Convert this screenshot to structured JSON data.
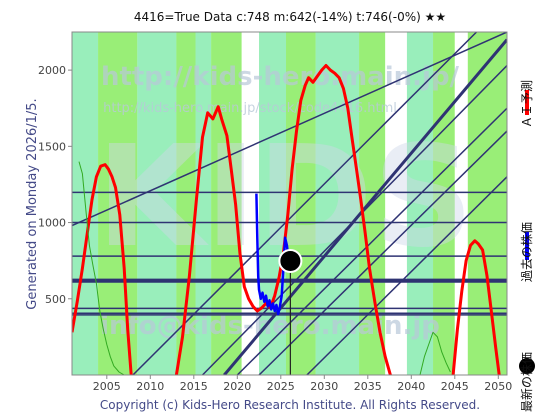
{
  "header": {
    "text": "4416=True   Data      c:748  m:642(-14%)  t:746(-0%)  ★★"
  },
  "side_label": "Generated on Monday 2026/1/5.",
  "footer": "Copyright (c) Kids-Hero Research Institute. All Rights Reserved.",
  "watermarks": {
    "big": "KIDS",
    "url1": "http://kids-hero.main.jp/",
    "url2": "http://kids-hero.main.jp/stock/code4416.html",
    "mail": "info@kids-hero.main.jp"
  },
  "legend": [
    {
      "label": "ＡＩ予測",
      "color": "#ff0000"
    },
    {
      "label": "過去の株価",
      "color": "#0000ff"
    },
    {
      "label": "最新の株価",
      "color": "#000000"
    }
  ],
  "colors": {
    "plot_bg": "#ccffaa",
    "band_green": "#99ee77",
    "band_cyan": "#99eebb",
    "band_white": "#ffffff",
    "line_navy": "#2f3373",
    "ai_red": "#ff0000",
    "price_blue": "#0000ff",
    "thin_green": "#33aa22"
  },
  "chart_data": {
    "type": "line",
    "title": "",
    "xlabel": "",
    "ylabel": "",
    "xlim": [
      2001,
      2051
    ],
    "ylim": [
      0,
      2250
    ],
    "xticks": [
      2005,
      2010,
      2015,
      2020,
      2025,
      2030,
      2035,
      2040,
      2045,
      2050
    ],
    "yticks": [
      500,
      1000,
      1500,
      2000
    ],
    "grid": false,
    "latest_point": {
      "x": 2026.1,
      "y": 748
    },
    "horizontal_levels": [
      1198,
      1000,
      780,
      622,
      610,
      437,
      405,
      394
    ],
    "bands": [
      {
        "x0": 2001.0,
        "x1": 2004.0,
        "kind": "cyan"
      },
      {
        "x0": 2004.0,
        "x1": 2008.5,
        "kind": "green"
      },
      {
        "x0": 2008.5,
        "x1": 2013.0,
        "kind": "cyan"
      },
      {
        "x0": 2013.0,
        "x1": 2015.2,
        "kind": "green"
      },
      {
        "x0": 2015.2,
        "x1": 2017.0,
        "kind": "cyan"
      },
      {
        "x0": 2017.0,
        "x1": 2020.5,
        "kind": "green"
      },
      {
        "x0": 2020.5,
        "x1": 2022.5,
        "kind": "white"
      },
      {
        "x0": 2022.5,
        "x1": 2025.6,
        "kind": "cyan"
      },
      {
        "x0": 2025.6,
        "x1": 2029.0,
        "kind": "green"
      },
      {
        "x0": 2029.0,
        "x1": 2034.0,
        "kind": "cyan"
      },
      {
        "x0": 2034.0,
        "x1": 2037.0,
        "kind": "green"
      },
      {
        "x0": 2037.0,
        "x1": 2039.5,
        "kind": "white"
      },
      {
        "x0": 2039.5,
        "x1": 2042.5,
        "kind": "cyan"
      },
      {
        "x0": 2042.5,
        "x1": 2045.0,
        "kind": "green"
      },
      {
        "x0": 2045.0,
        "x1": 2046.5,
        "kind": "white"
      },
      {
        "x0": 2046.5,
        "x1": 2051.0,
        "kind": "green"
      }
    ],
    "trend_lines": [
      {
        "x": [
          2008.0,
          2047.5
        ],
        "y": [
          0,
          2250
        ],
        "w": 1.5
      },
      {
        "x": [
          2001.0,
          2051.0
        ],
        "y": [
          980,
          2250
        ],
        "w": 1.5
      },
      {
        "x": [
          2018.5,
          2051.0
        ],
        "y": [
          0,
          2200
        ],
        "w": 3
      },
      {
        "x": [
          2016.0,
          2051.0
        ],
        "y": [
          0,
          2030
        ],
        "w": 1.5
      },
      {
        "x": [
          2020.0,
          2051.0
        ],
        "y": [
          0,
          1750
        ],
        "w": 1.5
      },
      {
        "x": [
          2022.5,
          2051.0
        ],
        "y": [
          0,
          1600
        ],
        "w": 1.5
      },
      {
        "x": [
          2028.0,
          2051.0
        ],
        "y": [
          0,
          1300
        ],
        "w": 1.5
      }
    ],
    "series": [
      {
        "name": "ＡＩ予測",
        "color": "#ff0000",
        "points": [
          [
            2001.0,
            280
          ],
          [
            2001.6,
            480
          ],
          [
            2002.2,
            700
          ],
          [
            2002.8,
            950
          ],
          [
            2003.3,
            1150
          ],
          [
            2003.8,
            1300
          ],
          [
            2004.3,
            1370
          ],
          [
            2004.8,
            1380
          ],
          [
            2005.2,
            1350
          ],
          [
            2005.6,
            1300
          ],
          [
            2006.0,
            1230
          ],
          [
            2006.5,
            1050
          ],
          [
            2007.0,
            700
          ],
          [
            2007.4,
            300
          ],
          [
            2007.8,
            0
          ]
        ]
      },
      {
        "name": "ＡＩ予測",
        "color": "#ff0000",
        "points": [
          [
            2013.0,
            0
          ],
          [
            2013.7,
            250
          ],
          [
            2014.5,
            650
          ],
          [
            2015.3,
            1150
          ],
          [
            2016.0,
            1560
          ],
          [
            2016.6,
            1720
          ],
          [
            2017.2,
            1680
          ],
          [
            2017.8,
            1760
          ],
          [
            2018.2,
            1680
          ],
          [
            2018.8,
            1570
          ],
          [
            2019.3,
            1350
          ],
          [
            2019.8,
            1120
          ],
          [
            2020.3,
            800
          ],
          [
            2020.8,
            580
          ],
          [
            2021.3,
            500
          ],
          [
            2021.8,
            450
          ],
          [
            2022.3,
            420
          ],
          [
            2022.8,
            440
          ],
          [
            2023.3,
            470
          ],
          [
            2023.8,
            440
          ],
          [
            2024.3,
            520
          ],
          [
            2024.8,
            640
          ],
          [
            2025.3,
            800
          ],
          [
            2025.8,
            1050
          ],
          [
            2026.3,
            1350
          ],
          [
            2026.8,
            1600
          ],
          [
            2027.3,
            1800
          ],
          [
            2027.8,
            1900
          ],
          [
            2028.2,
            1950
          ],
          [
            2028.7,
            1920
          ],
          [
            2029.2,
            1960
          ],
          [
            2029.7,
            2000
          ],
          [
            2030.2,
            2030
          ],
          [
            2030.7,
            2000
          ],
          [
            2031.2,
            1980
          ],
          [
            2031.7,
            1950
          ],
          [
            2032.2,
            1880
          ],
          [
            2032.7,
            1750
          ],
          [
            2033.2,
            1550
          ],
          [
            2033.7,
            1350
          ],
          [
            2034.2,
            1150
          ],
          [
            2034.7,
            930
          ],
          [
            2035.2,
            700
          ],
          [
            2035.8,
            480
          ],
          [
            2036.4,
            280
          ],
          [
            2037.0,
            120
          ],
          [
            2037.6,
            0
          ]
        ]
      },
      {
        "name": "ＡＩ予測",
        "color": "#ff0000",
        "points": [
          [
            2044.8,
            0
          ],
          [
            2045.3,
            300
          ],
          [
            2045.8,
            550
          ],
          [
            2046.3,
            750
          ],
          [
            2046.8,
            850
          ],
          [
            2047.3,
            880
          ],
          [
            2047.7,
            860
          ],
          [
            2048.2,
            820
          ],
          [
            2048.7,
            650
          ],
          [
            2049.2,
            420
          ],
          [
            2049.7,
            180
          ],
          [
            2050.1,
            0
          ]
        ]
      },
      {
        "name": "過去の株価",
        "color": "#0000ff",
        "points": [
          [
            2022.2,
            1190
          ],
          [
            2022.3,
            900
          ],
          [
            2022.4,
            650
          ],
          [
            2022.5,
            560
          ],
          [
            2022.7,
            500
          ],
          [
            2022.9,
            540
          ],
          [
            2023.1,
            480
          ],
          [
            2023.3,
            520
          ],
          [
            2023.5,
            450
          ],
          [
            2023.7,
            490
          ],
          [
            2023.9,
            430
          ],
          [
            2024.1,
            470
          ],
          [
            2024.3,
            420
          ],
          [
            2024.5,
            460
          ],
          [
            2024.7,
            400
          ],
          [
            2024.9,
            450
          ],
          [
            2025.1,
            520
          ],
          [
            2025.3,
            700
          ],
          [
            2025.5,
            900
          ],
          [
            2025.7,
            850
          ],
          [
            2025.9,
            760
          ],
          [
            2026.1,
            748
          ]
        ]
      },
      {
        "name": "thin-green",
        "color": "#33aa22",
        "points": [
          [
            2001.8,
            1400
          ],
          [
            2002.2,
            1320
          ],
          [
            2002.6,
            1080
          ],
          [
            2003.0,
            850
          ],
          [
            2003.4,
            720
          ],
          [
            2003.8,
            600
          ],
          [
            2004.2,
            420
          ],
          [
            2004.6,
            300
          ],
          [
            2005.0,
            200
          ],
          [
            2005.4,
            120
          ],
          [
            2005.8,
            60
          ],
          [
            2006.4,
            20
          ],
          [
            2007.0,
            0
          ]
        ]
      },
      {
        "name": "thin-green",
        "color": "#33aa22",
        "points": [
          [
            2041.0,
            0
          ],
          [
            2041.5,
            120
          ],
          [
            2042.0,
            200
          ],
          [
            2042.5,
            280
          ],
          [
            2043.0,
            250
          ],
          [
            2043.5,
            150
          ],
          [
            2044.0,
            80
          ],
          [
            2044.5,
            20
          ]
        ]
      }
    ]
  }
}
